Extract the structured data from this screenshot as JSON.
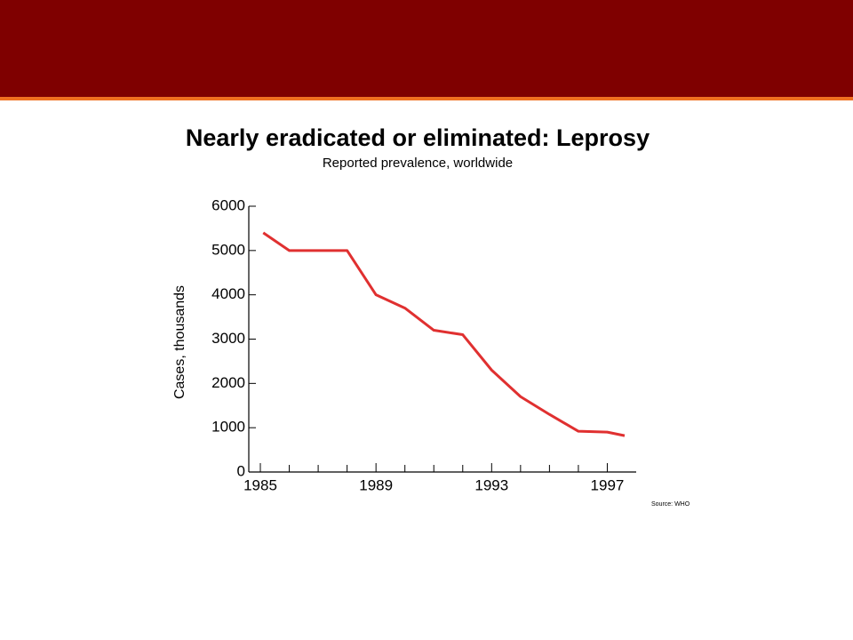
{
  "chart_data": {
    "type": "line",
    "title": "Nearly eradicated or eliminated: Leprosy",
    "subtitle": "Reported prevalence, worldwide",
    "y_label": "Cases, thousands",
    "source": "Source: WHO",
    "x": [
      1985.1,
      1986,
      1988,
      1989,
      1990,
      1991,
      1992,
      1993,
      1994,
      1995,
      1996,
      1997,
      1997.6
    ],
    "series": [
      {
        "color": "#e03030",
        "values": [
          5400,
          5000,
          5000,
          4000,
          3700,
          3200,
          3100,
          2300,
          1700,
          1300,
          920,
          900,
          820
        ]
      }
    ],
    "xlim": [
      1984.6,
      1998
    ],
    "xticks": [
      1985,
      1989,
      1993,
      1997
    ],
    "xminorticks": [
      1986,
      1987,
      1988,
      1990,
      1991,
      1992,
      1994,
      1995,
      1996
    ],
    "ylim": [
      0,
      6000
    ],
    "yticks": [
      0,
      1000,
      2000,
      3000,
      4000,
      5000,
      6000
    ]
  }
}
